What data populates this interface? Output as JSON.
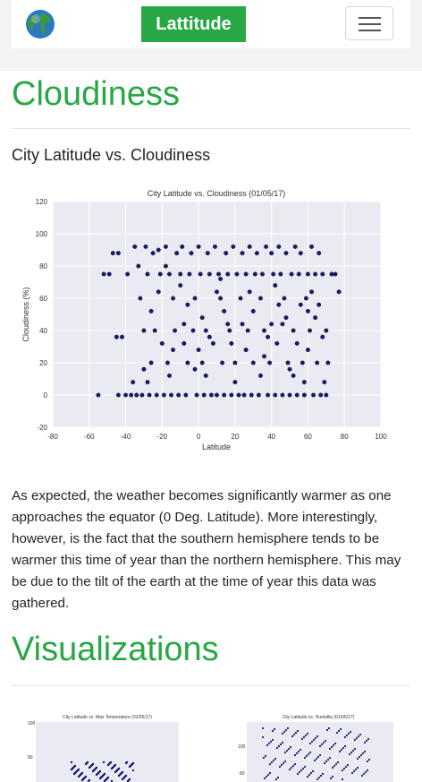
{
  "navbar": {
    "brand": "Lattitude",
    "logo_icon": "globe-icon",
    "menu_icon": "hamburger-menu-icon",
    "brand_color": "#28a745"
  },
  "section": {
    "heading": "Cloudiness",
    "subheading": "City Latitude vs. Cloudiness",
    "description": "As expected, the weather becomes significantly warmer as one approaches the equator (0 Deg. Latitude). More interestingly, however, is the fact that the southern hemisphere tends to be warmer this time of year than the northern hemisphere. This may be due to the tilt of the earth at the time of year this data was gathered."
  },
  "visualizations": {
    "heading": "Visualizations",
    "thumb1_title": "City Latitude vs. Max Temperature (01/05/17)",
    "thumb2_title": "City Latitude vs. Humidity (01/05/17)",
    "thumb1_ticks": [
      "100",
      "80"
    ],
    "thumb2_ticks": [
      "100",
      "80"
    ]
  },
  "chart_data": {
    "type": "scatter",
    "title": "City Latitude vs. Cloudiness (01/05/17)",
    "xlabel": "Latitude",
    "ylabel": "Cloudiness (%)",
    "xlim": [
      -80,
      100
    ],
    "ylim": [
      -20,
      120
    ],
    "xticks": [
      "-80",
      "-60",
      "-40",
      "-20",
      "0",
      "20",
      "40",
      "60",
      "80",
      "100"
    ],
    "yticks": [
      "-20",
      "0",
      "20",
      "40",
      "60",
      "80",
      "100",
      "120"
    ],
    "grid": true,
    "marker_color": "#1a1a6e",
    "background": "#eaeaf2",
    "points": [
      [
        -55,
        0
      ],
      [
        -52,
        75
      ],
      [
        -49,
        75
      ],
      [
        -47,
        88
      ],
      [
        -45,
        36
      ],
      [
        -44,
        0
      ],
      [
        -42,
        36
      ],
      [
        -40,
        0
      ],
      [
        -39,
        75
      ],
      [
        -37,
        0
      ],
      [
        -36,
        8
      ],
      [
        -35,
        92
      ],
      [
        -34,
        0
      ],
      [
        -33,
        80
      ],
      [
        -32,
        60
      ],
      [
        -31,
        0
      ],
      [
        -30,
        40
      ],
      [
        -29,
        92
      ],
      [
        -28,
        75
      ],
      [
        -27,
        0
      ],
      [
        -26,
        20
      ],
      [
        -25,
        88
      ],
      [
        -24,
        40
      ],
      [
        -23,
        0
      ],
      [
        -22,
        90
      ],
      [
        -21,
        75
      ],
      [
        -20,
        32
      ],
      [
        -19,
        0
      ],
      [
        -18,
        92
      ],
      [
        -17,
        20
      ],
      [
        -16,
        75
      ],
      [
        -15,
        0
      ],
      [
        -14,
        60
      ],
      [
        -13,
        40
      ],
      [
        -12,
        88
      ],
      [
        -11,
        0
      ],
      [
        -10,
        75
      ],
      [
        -9,
        92
      ],
      [
        -8,
        32
      ],
      [
        -7,
        0
      ],
      [
        -6,
        20
      ],
      [
        -5,
        75
      ],
      [
        -4,
        88
      ],
      [
        -3,
        40
      ],
      [
        -2,
        60
      ],
      [
        -1,
        0
      ],
      [
        0,
        92
      ],
      [
        1,
        75
      ],
      [
        2,
        20
      ],
      [
        3,
        0
      ],
      [
        4,
        40
      ],
      [
        5,
        88
      ],
      [
        6,
        75
      ],
      [
        7,
        0
      ],
      [
        8,
        32
      ],
      [
        9,
        92
      ],
      [
        10,
        0
      ],
      [
        11,
        75
      ],
      [
        12,
        60
      ],
      [
        13,
        20
      ],
      [
        14,
        0
      ],
      [
        15,
        88
      ],
      [
        16,
        75
      ],
      [
        17,
        40
      ],
      [
        18,
        0
      ],
      [
        19,
        92
      ],
      [
        20,
        20
      ],
      [
        21,
        75
      ],
      [
        22,
        0
      ],
      [
        23,
        60
      ],
      [
        24,
        88
      ],
      [
        25,
        0
      ],
      [
        26,
        75
      ],
      [
        27,
        40
      ],
      [
        28,
        92
      ],
      [
        29,
        0
      ],
      [
        30,
        20
      ],
      [
        31,
        75
      ],
      [
        32,
        88
      ],
      [
        33,
        0
      ],
      [
        34,
        60
      ],
      [
        35,
        75
      ],
      [
        36,
        40
      ],
      [
        37,
        92
      ],
      [
        38,
        0
      ],
      [
        39,
        20
      ],
      [
        40,
        88
      ],
      [
        41,
        75
      ],
      [
        42,
        0
      ],
      [
        43,
        32
      ],
      [
        44,
        92
      ],
      [
        45,
        75
      ],
      [
        46,
        0
      ],
      [
        47,
        60
      ],
      [
        48,
        88
      ],
      [
        49,
        20
      ],
      [
        50,
        0
      ],
      [
        51,
        75
      ],
      [
        52,
        40
      ],
      [
        53,
        92
      ],
      [
        54,
        0
      ],
      [
        55,
        75
      ],
      [
        56,
        88
      ],
      [
        57,
        20
      ],
      [
        58,
        0
      ],
      [
        59,
        60
      ],
      [
        60,
        75
      ],
      [
        61,
        40
      ],
      [
        62,
        92
      ],
      [
        63,
        0
      ],
      [
        64,
        75
      ],
      [
        65,
        20
      ],
      [
        66,
        88
      ],
      [
        67,
        0
      ],
      [
        68,
        75
      ],
      [
        69,
        8
      ],
      [
        70,
        0
      ],
      [
        71,
        20
      ],
      [
        73,
        75
      ],
      [
        75,
        75
      ],
      [
        77,
        64
      ],
      [
        -18,
        80
      ],
      [
        -10,
        68
      ],
      [
        -6,
        56
      ],
      [
        2,
        48
      ],
      [
        6,
        36
      ],
      [
        12,
        72
      ],
      [
        16,
        44
      ],
      [
        26,
        28
      ],
      [
        30,
        52
      ],
      [
        36,
        24
      ],
      [
        42,
        68
      ],
      [
        46,
        44
      ],
      [
        52,
        12
      ],
      [
        56,
        56
      ],
      [
        60,
        28
      ],
      [
        64,
        48
      ],
      [
        68,
        36
      ],
      [
        -26,
        52
      ],
      [
        -14,
        28
      ],
      [
        -2,
        16
      ],
      [
        10,
        64
      ],
      [
        20,
        8
      ],
      [
        34,
        12
      ],
      [
        44,
        56
      ],
      [
        54,
        32
      ],
      [
        62,
        64
      ],
      [
        -30,
        16
      ],
      [
        -22,
        64
      ],
      [
        -8,
        44
      ],
      [
        4,
        12
      ],
      [
        14,
        52
      ],
      [
        24,
        44
      ],
      [
        38,
        36
      ],
      [
        48,
        48
      ],
      [
        58,
        8
      ],
      [
        66,
        56
      ],
      [
        -44,
        88
      ],
      [
        -28,
        8
      ],
      [
        -16,
        12
      ],
      [
        0,
        28
      ],
      [
        18,
        32
      ],
      [
        28,
        64
      ],
      [
        40,
        44
      ],
      [
        50,
        16
      ],
      [
        60,
        52
      ],
      [
        70,
        40
      ]
    ]
  }
}
